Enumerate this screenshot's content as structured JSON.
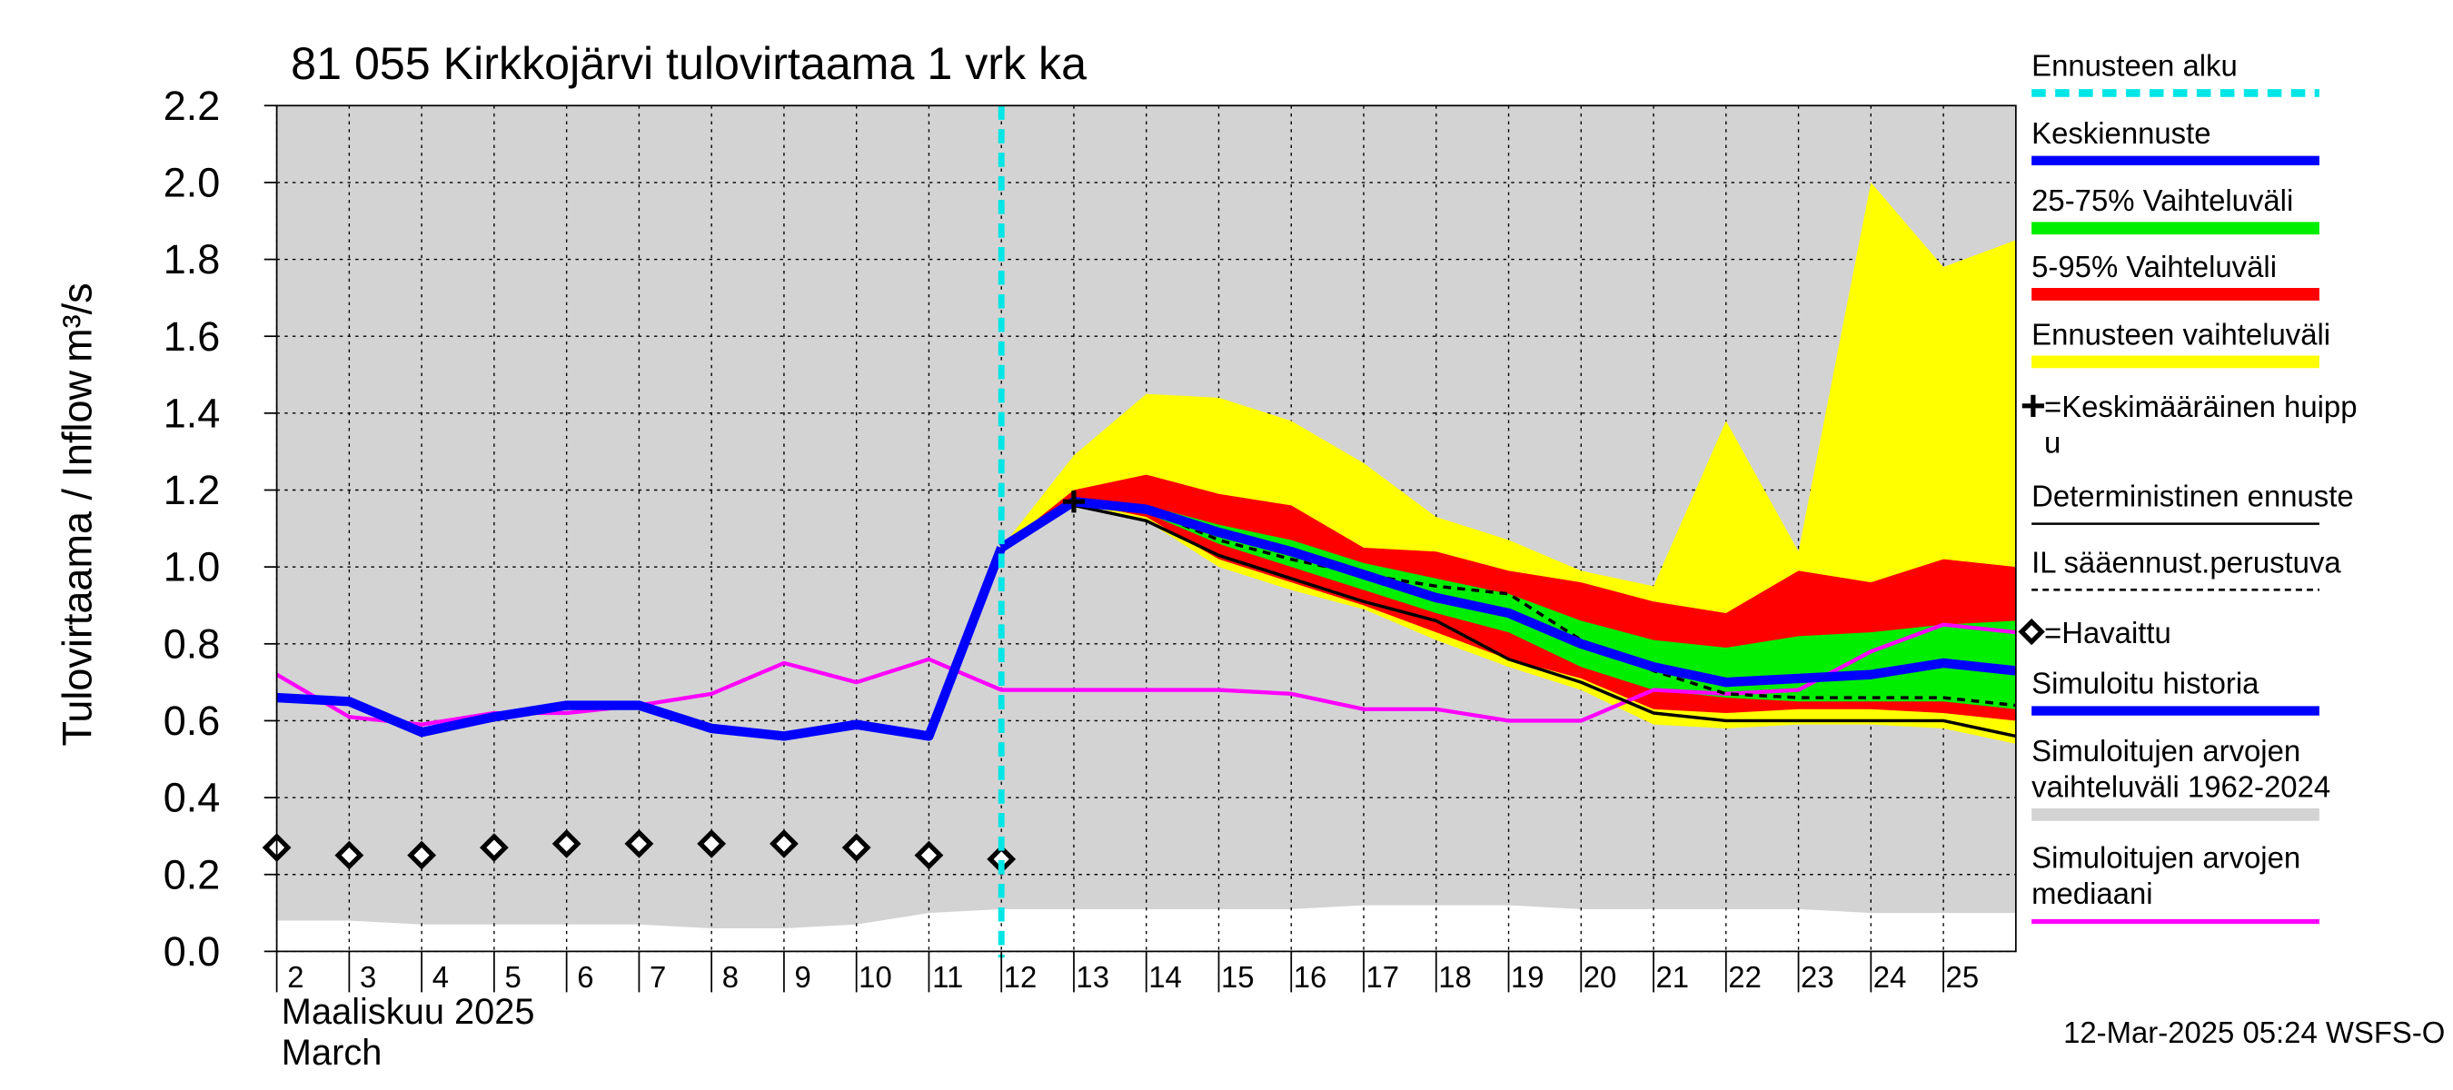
{
  "chart_data": {
    "type": "line",
    "title": "81 055 Kirkkojärvi tulovirtaama 1 vrk ka",
    "y_label": "Tulovirtaama / Inflow",
    "y_unit": "m³/s",
    "x_label": "Maaliskuu 2025",
    "x_label2": "March",
    "footer": "12-Mar-2025 05:24 WSFS-O",
    "xlim": [
      2,
      26
    ],
    "xticks": [
      2,
      3,
      4,
      5,
      6,
      7,
      8,
      9,
      10,
      11,
      12,
      13,
      14,
      15,
      16,
      17,
      18,
      19,
      20,
      21,
      22,
      23,
      24,
      25
    ],
    "ylim": [
      0,
      2.2
    ],
    "yticks": [
      {
        "value": 0,
        "label": "0.0"
      },
      0.2,
      0.4,
      0.6,
      0.8,
      {
        "value": 1,
        "label": "1.0"
      },
      1.2,
      1.4,
      1.6,
      1.8,
      {
        "value": 2,
        "label": "2.0"
      },
      2.2
    ],
    "grid": true,
    "series": [
      {
        "name": "Ennusteen alku",
        "kind": "vline",
        "color": "#00e5e5",
        "x": [
          12
        ]
      },
      {
        "name": "Keskiennuste",
        "kind": "line",
        "color": "#0000ff",
        "x": [
          12,
          13,
          14,
          15,
          16,
          17,
          18,
          19,
          20,
          21,
          22,
          23,
          24,
          25,
          26
        ],
        "values": [
          1.05,
          1.17,
          1.15,
          1.09,
          1.04,
          0.98,
          0.92,
          0.88,
          0.8,
          0.74,
          0.7,
          0.71,
          0.72,
          0.75,
          0.73
        ]
      },
      {
        "name": "25-75% Vaihteluväli",
        "kind": "band",
        "color": "#00ee00",
        "x": [
          12,
          13,
          14,
          15,
          16,
          17,
          18,
          19,
          20,
          21,
          22,
          23,
          24,
          25,
          26
        ],
        "upper": [
          1.05,
          1.18,
          1.16,
          1.11,
          1.07,
          1.01,
          0.97,
          0.93,
          0.86,
          0.81,
          0.79,
          0.82,
          0.83,
          0.85,
          0.86
        ],
        "lower": [
          1.05,
          1.17,
          1.14,
          1.06,
          1.0,
          0.94,
          0.88,
          0.83,
          0.74,
          0.68,
          0.66,
          0.65,
          0.65,
          0.65,
          0.63
        ]
      },
      {
        "name": "5-95% Vaihteluväli",
        "kind": "band",
        "color": "#ff0000",
        "x": [
          12,
          13,
          14,
          15,
          16,
          17,
          18,
          19,
          20,
          21,
          22,
          23,
          24,
          25,
          26
        ],
        "upper": [
          1.05,
          1.2,
          1.24,
          1.19,
          1.16,
          1.05,
          1.04,
          0.99,
          0.96,
          0.91,
          0.88,
          0.99,
          0.96,
          1.02,
          1.0
        ],
        "lower": [
          1.05,
          1.17,
          1.13,
          1.02,
          0.96,
          0.9,
          0.83,
          0.76,
          0.71,
          0.63,
          0.62,
          0.63,
          0.63,
          0.62,
          0.6
        ]
      },
      {
        "name": "Ennusteen vaihteluväli",
        "kind": "band",
        "color": "#ffff00",
        "x": [
          12,
          13,
          14,
          15,
          16,
          17,
          18,
          19,
          20,
          21,
          22,
          23,
          24,
          25,
          26
        ],
        "upper": [
          1.05,
          1.29,
          1.45,
          1.44,
          1.38,
          1.27,
          1.13,
          1.07,
          0.99,
          0.95,
          1.38,
          1.04,
          2.0,
          1.78,
          1.85
        ],
        "lower": [
          1.05,
          1.17,
          1.12,
          1.0,
          0.94,
          0.89,
          0.81,
          0.74,
          0.68,
          0.59,
          0.58,
          0.59,
          0.59,
          0.58,
          0.54
        ]
      },
      {
        "name": "=Keskimääräinen huipp\nu",
        "kind": "cross",
        "color": "#000000",
        "x": [
          13
        ],
        "values": [
          1.17
        ]
      },
      {
        "name": "Deterministinen ennuste",
        "kind": "line",
        "color": "#000000",
        "x": [
          12,
          13,
          14,
          15,
          16,
          17,
          18,
          19,
          20,
          21,
          22,
          23,
          24,
          25,
          26
        ],
        "values": [
          1.05,
          1.16,
          1.12,
          1.03,
          0.97,
          0.91,
          0.86,
          0.76,
          0.7,
          0.62,
          0.6,
          0.6,
          0.6,
          0.6,
          0.56
        ]
      },
      {
        "name": "IL sääennust.perustuva",
        "kind": "dashed",
        "color": "#000000",
        "x": [
          12,
          13,
          14,
          15,
          16,
          17,
          18,
          19,
          20,
          21,
          22,
          23,
          24,
          25,
          26
        ],
        "values": [
          1.05,
          1.17,
          1.15,
          1.07,
          1.02,
          0.98,
          0.95,
          0.93,
          0.81,
          0.73,
          0.67,
          0.66,
          0.66,
          0.66,
          0.64
        ]
      },
      {
        "name": "=Havaittu",
        "kind": "markers",
        "color": "#000000",
        "x": [
          2,
          3,
          4,
          5,
          6,
          7,
          8,
          9,
          10,
          11,
          12
        ],
        "values": [
          0.27,
          0.25,
          0.25,
          0.27,
          0.28,
          0.28,
          0.28,
          0.28,
          0.27,
          0.25,
          0.24
        ]
      },
      {
        "name": "Simuloitu historia",
        "kind": "line",
        "color": "#0000ff",
        "x": [
          2,
          3,
          4,
          5,
          6,
          7,
          8,
          9,
          10,
          11,
          12
        ],
        "values": [
          0.66,
          0.65,
          0.57,
          0.61,
          0.64,
          0.64,
          0.58,
          0.56,
          0.59,
          0.56,
          1.05
        ]
      },
      {
        "name": "Simuloitujen arvojen\nvaihteluväli 1962-2024",
        "kind": "band",
        "color": "#d3d3d3",
        "x": [
          2,
          3,
          4,
          5,
          6,
          7,
          8,
          9,
          10,
          11,
          12,
          13,
          14,
          15,
          16,
          17,
          18,
          19,
          20,
          21,
          22,
          23,
          24,
          25,
          26
        ],
        "upper": [
          2.2,
          2.2,
          2.2,
          2.2,
          2.2,
          2.2,
          2.2,
          2.2,
          2.2,
          2.2,
          2.2,
          2.2,
          2.2,
          2.2,
          2.2,
          2.2,
          2.2,
          2.2,
          2.2,
          2.2,
          2.2,
          2.2,
          2.2,
          2.2,
          2.2
        ],
        "lower": [
          0.08,
          0.08,
          0.07,
          0.07,
          0.07,
          0.07,
          0.06,
          0.06,
          0.07,
          0.1,
          0.11,
          0.11,
          0.11,
          0.11,
          0.11,
          0.12,
          0.12,
          0.12,
          0.11,
          0.11,
          0.11,
          0.11,
          0.1,
          0.1,
          0.1
        ]
      },
      {
        "name": "Simuloitujen arvojen\nmediaani",
        "kind": "line",
        "color": "#ff00ff",
        "x": [
          2,
          3,
          4,
          5,
          6,
          7,
          8,
          9,
          10,
          11,
          12,
          13,
          14,
          15,
          16,
          17,
          18,
          19,
          20,
          21,
          22,
          23,
          24,
          25,
          26
        ],
        "values": [
          0.72,
          0.61,
          0.59,
          0.62,
          0.62,
          0.64,
          0.67,
          0.75,
          0.7,
          0.76,
          0.68,
          0.68,
          0.68,
          0.68,
          0.67,
          0.63,
          0.63,
          0.6,
          0.6,
          0.68,
          0.67,
          0.68,
          0.78,
          0.85,
          0.83
        ]
      }
    ]
  }
}
